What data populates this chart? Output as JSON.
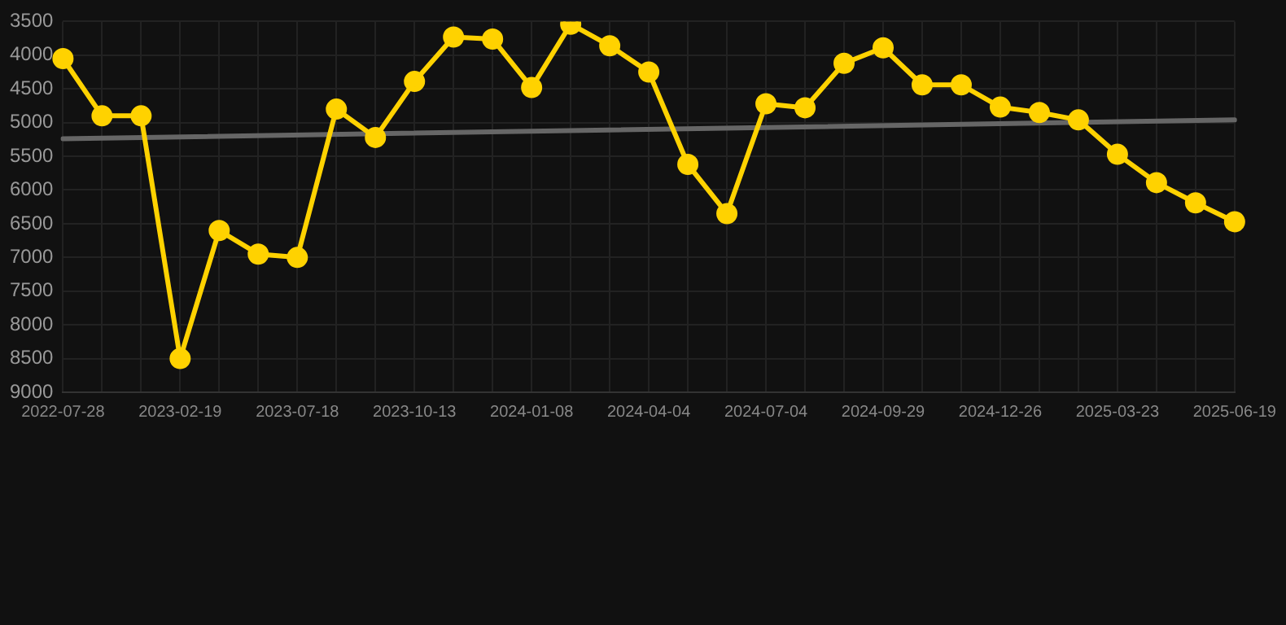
{
  "chart_data": {
    "type": "line",
    "categories": [
      "2022-07-28",
      null,
      null,
      "2023-02-19",
      null,
      null,
      "2023-07-18",
      null,
      null,
      "2023-10-13",
      null,
      null,
      "2024-01-08",
      null,
      null,
      "2024-04-04",
      null,
      null,
      "2024-07-04",
      null,
      null,
      "2024-09-29",
      null,
      null,
      "2024-12-26",
      null,
      null,
      "2025-03-23",
      null,
      null,
      "2025-06-19"
    ],
    "series": [
      {
        "color": "#ffd200",
        "marker": "circle",
        "values": [
          4050,
          4900,
          4900,
          8500,
          6600,
          6950,
          7000,
          4800,
          5220,
          4390,
          3730,
          3760,
          4480,
          3540,
          3860,
          4250,
          5620,
          6350,
          4720,
          4780,
          4120,
          3890,
          4440,
          4440,
          4770,
          4850,
          4960,
          5470,
          5890,
          6190,
          6470
        ]
      },
      {
        "type": "line",
        "color": "#666666",
        "marker": "none",
        "values": [
          5240,
          null,
          null,
          null,
          null,
          null,
          null,
          null,
          null,
          null,
          null,
          null,
          null,
          null,
          null,
          null,
          null,
          null,
          null,
          null,
          null,
          null,
          null,
          null,
          null,
          null,
          null,
          null,
          null,
          null,
          4960
        ]
      }
    ],
    "ylim": [
      9000,
      3500
    ],
    "yticks": [
      3500,
      4000,
      4500,
      5000,
      5500,
      6000,
      6500,
      7000,
      7500,
      8000,
      8500,
      9000
    ],
    "grid": true,
    "legend": false,
    "line_style": "solid"
  }
}
